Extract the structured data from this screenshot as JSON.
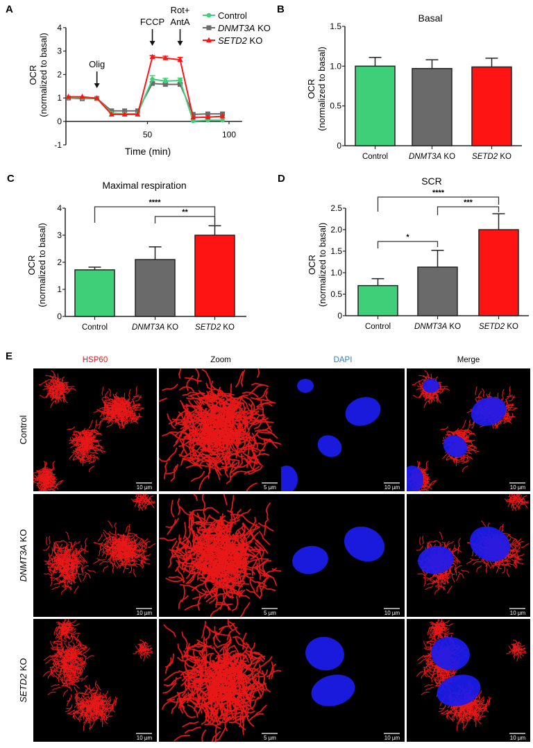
{
  "panels": {
    "a": "A",
    "b": "B",
    "c": "C",
    "d": "D",
    "e": "E"
  },
  "colors": {
    "control": "#3ecf78",
    "dnmt3a": "#6a6a6a",
    "setd2": "#ff1414",
    "hsp60_label": "#e8141c",
    "dapi_label": "#2a7fc8"
  },
  "chart_data": [
    {
      "id": "A",
      "type": "line",
      "xlabel": "Time (min)",
      "ylabel": [
        "OCR",
        "(normalized to basal)"
      ],
      "xticks": [
        50,
        100
      ],
      "yticks": [
        4,
        3,
        2,
        1,
        0,
        -1
      ],
      "xlim": [
        0,
        108
      ],
      "ylim": [
        -1,
        4
      ],
      "legend_position": "top-right",
      "x": [
        1.5,
        10,
        19,
        28,
        36,
        44,
        53,
        61,
        70,
        78,
        87,
        96
      ],
      "series": [
        {
          "name": "DNMT3A KO",
          "color": "#6a6a6a",
          "marker": "square",
          "values": [
            1.0,
            0.97,
            0.98,
            0.45,
            0.45,
            0.45,
            1.62,
            1.58,
            1.58,
            0.3,
            0.32,
            0.32
          ],
          "errors": [
            0.03,
            0.03,
            0.03,
            0.03,
            0.03,
            0.03,
            0.06,
            0.05,
            0.05,
            0.03,
            0.03,
            0.03
          ]
        },
        {
          "name": "Control",
          "color": "#3ecf78",
          "marker": "circle",
          "values": [
            1.02,
            1.0,
            0.98,
            0.35,
            0.33,
            0.33,
            1.8,
            1.72,
            1.75,
            0.02,
            0.05,
            0.05
          ],
          "errors": [
            0.03,
            0.03,
            0.03,
            0.03,
            0.03,
            0.03,
            0.15,
            0.12,
            0.1,
            0.02,
            0.02,
            0.02
          ]
        },
        {
          "name": "SETD2 KO",
          "color": "#ff1414",
          "marker": "triangle",
          "values": [
            1.05,
            1.05,
            0.99,
            0.3,
            0.3,
            0.3,
            2.75,
            2.7,
            2.63,
            0.17,
            0.18,
            0.22
          ],
          "errors": [
            0.04,
            0.03,
            0.03,
            0.03,
            0.03,
            0.03,
            0.06,
            0.08,
            0.1,
            0.03,
            0.03,
            0.04
          ]
        }
      ],
      "annotations": [
        {
          "label": [
            "Olig"
          ],
          "x": 19
        },
        {
          "label": [
            "FCCP"
          ],
          "x": 53
        },
        {
          "label": [
            "Rot+",
            "AntA"
          ],
          "x": 70
        }
      ]
    },
    {
      "id": "B",
      "type": "bar",
      "title": "Basal",
      "ylabel": [
        "OCR",
        "(normalized to basal)"
      ],
      "categories": [
        "Control",
        "DNMT3A KO",
        "SETD2 KO"
      ],
      "values": [
        1.0,
        0.97,
        0.99
      ],
      "errors": [
        0.11,
        0.11,
        0.11
      ],
      "colors": [
        "#3ecf78",
        "#6a6a6a",
        "#ff1414"
      ],
      "yticks": [
        "0",
        "0.5",
        "1.0",
        "1.5"
      ],
      "ylim": [
        0,
        1.5
      ],
      "significance": []
    },
    {
      "id": "C",
      "type": "bar",
      "title": "Maximal respiration",
      "ylabel": [
        "OCR",
        "(normalized to basal)"
      ],
      "categories": [
        "Control",
        "DNMT3A KO",
        "SETD2 KO"
      ],
      "values": [
        1.72,
        2.1,
        3.0
      ],
      "errors": [
        0.1,
        0.47,
        0.35
      ],
      "colors": [
        "#3ecf78",
        "#6a6a6a",
        "#ff1414"
      ],
      "yticks": [
        "0",
        "1",
        "2",
        "3",
        "4"
      ],
      "ylim": [
        0,
        4
      ],
      "significance": [
        {
          "from": 0,
          "to": 2,
          "label": "****"
        },
        {
          "from": 1,
          "to": 2,
          "label": "**"
        }
      ]
    },
    {
      "id": "D",
      "type": "bar",
      "title": "SCR",
      "ylabel": [
        "OCR",
        "(normalized to basal)"
      ],
      "categories": [
        "Control",
        "DNMT3A KO",
        "SETD2 KO"
      ],
      "values": [
        0.7,
        1.13,
        2.0
      ],
      "errors": [
        0.16,
        0.39,
        0.37
      ],
      "colors": [
        "#3ecf78",
        "#6a6a6a",
        "#ff1414"
      ],
      "yticks": [
        "0",
        "0.5",
        "1.0",
        "1.5",
        "2.0",
        "2.5"
      ],
      "ylim": [
        0,
        2.5
      ],
      "significance": [
        {
          "from": 0,
          "to": 2,
          "label": "****"
        },
        {
          "from": 1,
          "to": 2,
          "label": "***"
        },
        {
          "from": 0,
          "to": 1,
          "label": "*"
        }
      ]
    }
  ],
  "micrographs": {
    "columns": [
      {
        "label": "HSP60",
        "color": "#e8141c",
        "scale_bar": "10 µm"
      },
      {
        "label": "Zoom",
        "color": "#000000",
        "scale_bar": "5 µm"
      },
      {
        "label": "DAPI",
        "color": "#2a7fc8",
        "scale_bar": "10 µm"
      },
      {
        "label": "Merge",
        "color": "#000000",
        "scale_bar": "10 µm"
      }
    ],
    "rows": [
      "Control",
      "DNMT3A KO",
      "SETD2 KO"
    ]
  }
}
